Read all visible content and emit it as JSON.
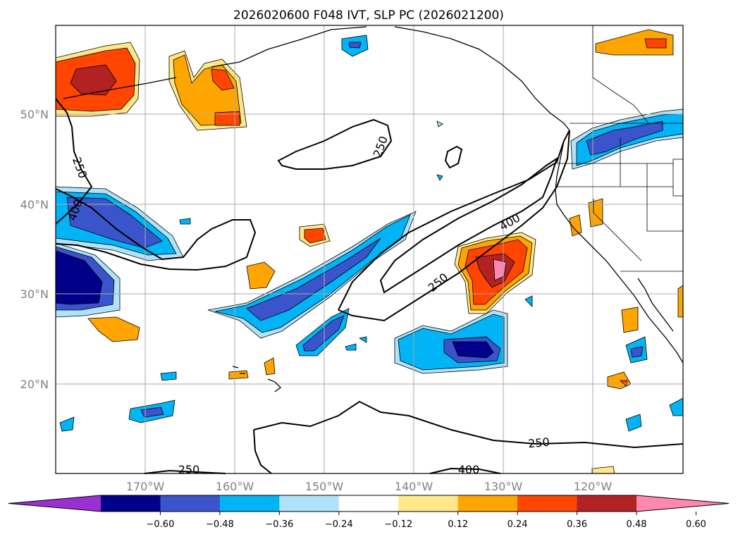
{
  "title": "2026020600 F048 IVT, SLP PC (2026021200)",
  "lat_labels": [
    "50°N",
    "40°N",
    "30°N",
    "20°N"
  ],
  "lon_labels": [
    "170°W",
    "160°W",
    "150°W",
    "140°W",
    "130°W",
    "120°W"
  ],
  "colorbar": {
    "ticks": [
      "−0.60",
      "−0.48",
      "−0.36",
      "−0.24",
      "−0.12",
      "0.12",
      "0.24",
      "0.36",
      "0.48",
      "0.60"
    ],
    "colors": [
      "#9b30d0",
      "#00008b",
      "#3a55cc",
      "#00b4f5",
      "#b0e2fa",
      "#ffffff",
      "#ffe88a",
      "#ffa500",
      "#ff4500",
      "#b22222",
      "#ff88b0"
    ]
  },
  "contour_labels": {
    "c1": "250",
    "c2": "250",
    "c3": "400",
    "c4": "400",
    "c5": "250",
    "c6": "250",
    "c7": "250",
    "c8": "400"
  },
  "colors": {
    "negative_strong": "#00008b",
    "negative_mid": "#3a55cc",
    "negative_weak": "#00b4f5",
    "negative_faint": "#b0e2fa",
    "positive_faint": "#ffe88a",
    "positive_weak": "#ffa500",
    "positive_mid": "#ff4500",
    "positive_strong": "#b22222",
    "positive_max": "#ff88b0"
  }
}
